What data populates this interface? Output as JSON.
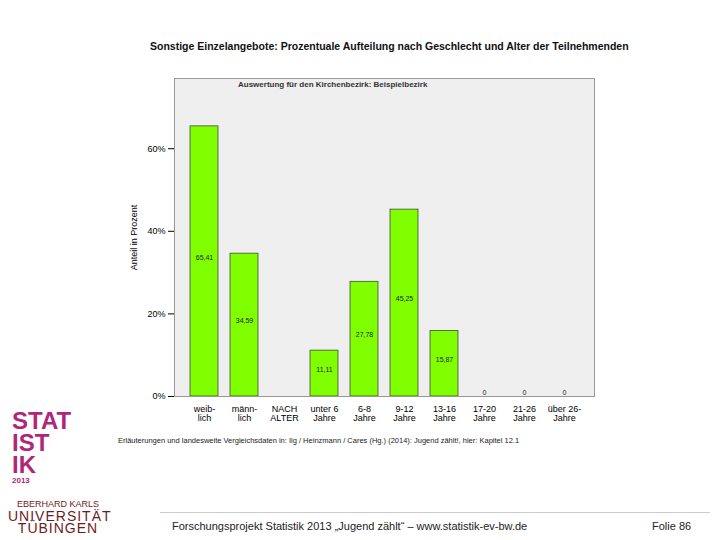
{
  "chart_data": {
    "type": "bar",
    "title": "Sonstige Einzelangebote: Prozentuale Aufteilung nach Geschlecht und Alter der Teilnehmenden",
    "subtitle": "Auswertung für den Kirchenbezirk: Beispielbezirk",
    "y_label": "Anteil in Prozent",
    "caption": "Erläuterungen und landesweite Vergleichsdaten in: Ilg / Heinzmann / Cares (Hg.) (2014): Jugend zählt!, hier: Kapitel 12.1",
    "categories": [
      "weib-\nlich",
      "männ-\nlich",
      "NACH\nALTER",
      "unter 6\nJahre",
      "6-8\nJahre",
      "9-12\nJahre",
      "13-16\nJahre",
      "17-20\nJahre",
      "21-26\nJahre",
      "über 26-\nJahre"
    ],
    "values": [
      65.41,
      34.59,
      null,
      11.11,
      27.78,
      45.25,
      15.87,
      0,
      0,
      0
    ],
    "value_labels": [
      "65,41",
      "34,59",
      null,
      "11,11",
      "27,78",
      "45,25",
      "15,87",
      "0",
      "0",
      "0"
    ],
    "data_labels": true,
    "color": "#80ff00",
    "ylim": [
      0,
      77
    ],
    "yticks": [
      {
        "value": 0,
        "label": "0%"
      },
      {
        "value": 20,
        "label": "20%"
      },
      {
        "value": 40,
        "label": "40%"
      },
      {
        "value": 60,
        "label": "60%"
      }
    ],
    "grid": false
  },
  "slide": {
    "footer": "Forschungsprojekt Statistik 2013 „Jugend zählt“ – www.statistik-ev-bw.de",
    "page": "Folie 86",
    "logo": [
      "STAT",
      "IST",
      "IK",
      "2013"
    ],
    "university": [
      "EBERHARD KARLS",
      "UNIVERSITÄT",
      "TÜBINGEN"
    ]
  }
}
